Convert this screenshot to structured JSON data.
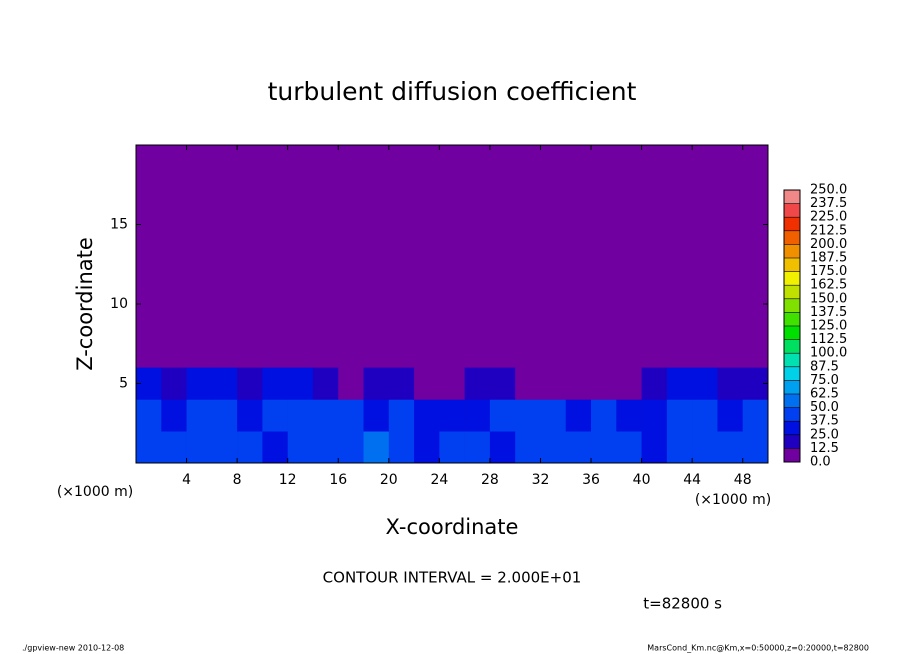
{
  "chart_data": {
    "type": "heatmap",
    "title": "turbulent diffusion coefficient",
    "x_label": "X-coordinate",
    "y_label": "Z-coordinate",
    "x_unit": "(×1000 m)",
    "xlim": [
      0,
      50
    ],
    "ylim": [
      0,
      20
    ],
    "xticks": [
      4,
      8,
      12,
      16,
      20,
      24,
      28,
      32,
      36,
      40,
      44,
      48
    ],
    "yticks": [
      5,
      10,
      15
    ],
    "x_edges": [
      0,
      2,
      4,
      6,
      8,
      10,
      12,
      14,
      16,
      18,
      20,
      22,
      24,
      26,
      28,
      30,
      32,
      34,
      36,
      38,
      40,
      42,
      44,
      46,
      48,
      50
    ],
    "y_edges": [
      0,
      2,
      4,
      6
    ],
    "values": [
      [
        45,
        40,
        38,
        42,
        40,
        35,
        40,
        45,
        38,
        50,
        40,
        35,
        38,
        40,
        35,
        40,
        45,
        38,
        42,
        40,
        35,
        38,
        40,
        42,
        38
      ],
      [
        38,
        35,
        40,
        45,
        35,
        42,
        38,
        40,
        45,
        35,
        40,
        30,
        30,
        35,
        40,
        38,
        40,
        30,
        40,
        35,
        30,
        38,
        40,
        35,
        38
      ],
      [
        25,
        20,
        25,
        30,
        20,
        25,
        30,
        15,
        10,
        15,
        20,
        10,
        5,
        15,
        20,
        10,
        5,
        10,
        5,
        5,
        15,
        25,
        25,
        20,
        15
      ]
    ],
    "levels": [
      {
        "value": 0,
        "label": "0.0"
      },
      {
        "value": 12.5,
        "label": "12.5"
      },
      {
        "value": 25,
        "label": "25.0"
      },
      {
        "value": 37.5,
        "label": "37.5"
      },
      {
        "value": 50,
        "label": "50.0"
      },
      {
        "value": 62.5,
        "label": "62.5"
      },
      {
        "value": 75,
        "label": "75.0"
      },
      {
        "value": 87.5,
        "label": "87.5"
      },
      {
        "value": 100,
        "label": "100.0"
      },
      {
        "value": 112.5,
        "label": "112.5"
      },
      {
        "value": 125,
        "label": "125.0"
      },
      {
        "value": 137.5,
        "label": "137.5"
      },
      {
        "value": 150,
        "label": "150.0"
      },
      {
        "value": 162.5,
        "label": "162.5"
      },
      {
        "value": 175,
        "label": "175.0"
      },
      {
        "value": 187.5,
        "label": "187.5"
      },
      {
        "value": 200,
        "label": "200.0"
      },
      {
        "value": 212.5,
        "label": "212.5"
      },
      {
        "value": 225,
        "label": "225.0"
      },
      {
        "value": 237.5,
        "label": "237.5"
      },
      {
        "value": 250,
        "label": "250.0"
      }
    ],
    "colors": [
      "#7000a0",
      "#2000c0",
      "#0010e0",
      "#0040f0",
      "#0070f0",
      "#00a0f0",
      "#00d0e8",
      "#00e0b0",
      "#00e060",
      "#00e000",
      "#40e000",
      "#80e000",
      "#c0e000",
      "#f0f000",
      "#f0c000",
      "#f09000",
      "#f06000",
      "#f03000",
      "#f04848",
      "#f08888"
    ],
    "contour_interval": "CONTOUR INTERVAL = 2.000E+01",
    "time_label": "t=82800 s",
    "footer_left": "./gpview-new  2010-12-08",
    "footer_right": "MarsCond_Km.nc@Km,x=0:50000,z=0:20000,t=82800"
  }
}
